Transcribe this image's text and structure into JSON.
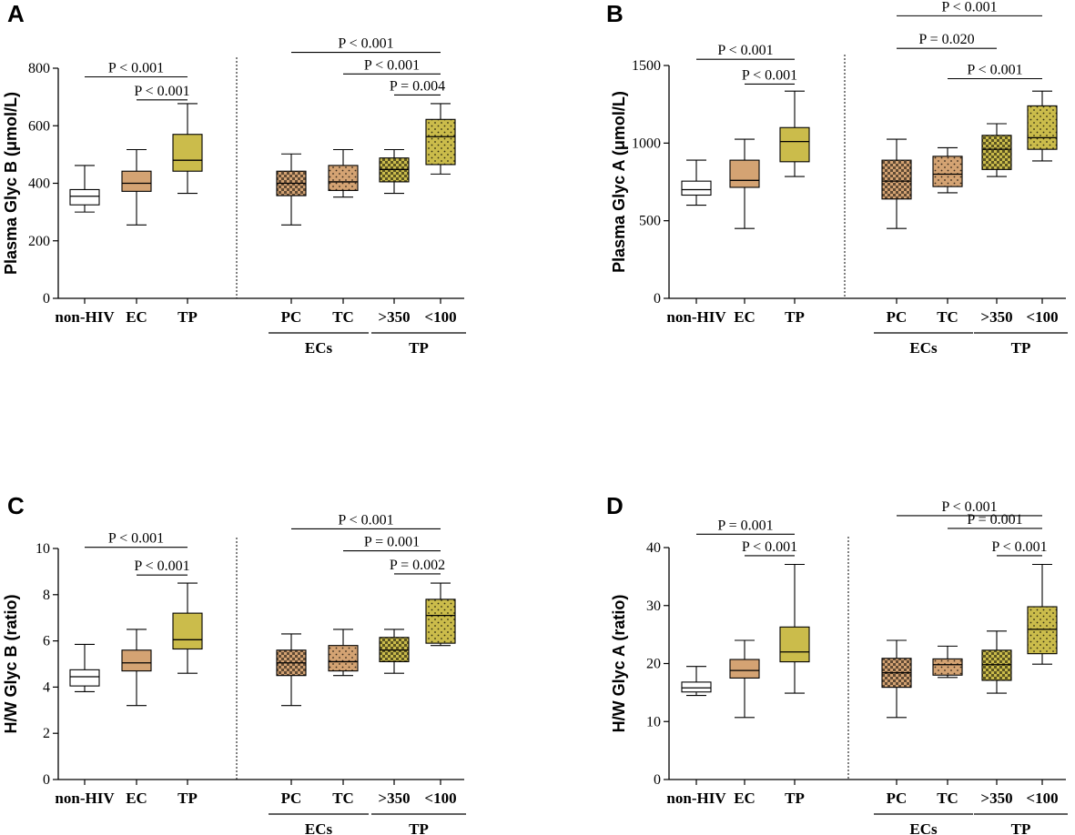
{
  "colors": {
    "white": "#ffffff",
    "tan": "#d4a373",
    "olive": "#cbbc4b",
    "line": "#000000"
  },
  "chart_data": [
    {
      "type": "box",
      "panel": "A",
      "ylabel": "Plasma Glyc B (μmol/L)",
      "ylim": [
        0,
        800
      ],
      "yticks": [
        0,
        200,
        400,
        600,
        800
      ],
      "categories": [
        "non-HIV",
        "EC",
        "TP",
        "PC",
        "TC",
        ">350",
        "<100"
      ],
      "groups": [
        {
          "label": "ECs",
          "from": 3,
          "to": 4
        },
        {
          "label": "TP",
          "from": 5,
          "to": 6
        }
      ],
      "boxes": [
        {
          "min": 300,
          "q1": 325,
          "median": 355,
          "q3": 378,
          "max": 462,
          "fill": "white",
          "pattern": "none"
        },
        {
          "min": 255,
          "q1": 372,
          "median": 400,
          "q3": 442,
          "max": 517,
          "fill": "tan",
          "pattern": "none"
        },
        {
          "min": 365,
          "q1": 442,
          "median": 480,
          "q3": 570,
          "max": 677,
          "fill": "olive",
          "pattern": "none"
        },
        {
          "min": 255,
          "q1": 357,
          "median": 400,
          "q3": 442,
          "max": 502,
          "fill": "tan",
          "pattern": "check"
        },
        {
          "min": 352,
          "q1": 375,
          "median": 405,
          "q3": 462,
          "max": 517,
          "fill": "tan",
          "pattern": "dots"
        },
        {
          "min": 365,
          "q1": 405,
          "median": 448,
          "q3": 488,
          "max": 517,
          "fill": "olive",
          "pattern": "check"
        },
        {
          "min": 432,
          "q1": 465,
          "median": 562,
          "q3": 622,
          "max": 677,
          "fill": "olive",
          "pattern": "dots"
        }
      ],
      "annotations": [
        {
          "text": "P < 0.001",
          "from": 0,
          "to": 2,
          "y": 770
        },
        {
          "text": "P < 0.001",
          "from": 1,
          "to": 2,
          "y": 690
        },
        {
          "text": "P < 0.001",
          "from": 3,
          "to": 6,
          "y": 855
        },
        {
          "text": "P < 0.001",
          "from": 4,
          "to": 6,
          "y": 780
        },
        {
          "text": "P = 0.004",
          "from": 5,
          "to": 6,
          "y": 707
        }
      ]
    },
    {
      "type": "box",
      "panel": "B",
      "ylabel": "Plasma Glyc A (μmol/L)",
      "ylim": [
        0,
        1500
      ],
      "yticks": [
        0,
        500,
        1000,
        1500
      ],
      "categories": [
        "non-HIV",
        "EC",
        "TP",
        "PC",
        "TC",
        ">350",
        "<100"
      ],
      "groups": [
        {
          "label": "ECs",
          "from": 3,
          "to": 4
        },
        {
          "label": "TP",
          "from": 5,
          "to": 6
        }
      ],
      "boxes": [
        {
          "min": 600,
          "q1": 665,
          "median": 700,
          "q3": 755,
          "max": 890,
          "fill": "white",
          "pattern": "none"
        },
        {
          "min": 450,
          "q1": 715,
          "median": 760,
          "q3": 890,
          "max": 1025,
          "fill": "tan",
          "pattern": "none"
        },
        {
          "min": 785,
          "q1": 880,
          "median": 1010,
          "q3": 1100,
          "max": 1335,
          "fill": "olive",
          "pattern": "none"
        },
        {
          "min": 450,
          "q1": 640,
          "median": 755,
          "q3": 890,
          "max": 1025,
          "fill": "tan",
          "pattern": "check"
        },
        {
          "min": 680,
          "q1": 720,
          "median": 800,
          "q3": 915,
          "max": 970,
          "fill": "tan",
          "pattern": "dots"
        },
        {
          "min": 785,
          "q1": 830,
          "median": 960,
          "q3": 1050,
          "max": 1125,
          "fill": "olive",
          "pattern": "check"
        },
        {
          "min": 885,
          "q1": 960,
          "median": 1035,
          "q3": 1240,
          "max": 1335,
          "fill": "olive",
          "pattern": "dots"
        }
      ],
      "annotations": [
        {
          "text": "P < 0.001",
          "from": 0,
          "to": 2,
          "y": 1540
        },
        {
          "text": "P < 0.001",
          "from": 1,
          "to": 2,
          "y": 1380
        },
        {
          "text": "P < 0.001",
          "from": 3,
          "to": 6,
          "y": 1820
        },
        {
          "text": "P = 0.020",
          "from": 3,
          "to": 5,
          "y": 1610
        },
        {
          "text": "P < 0.001",
          "from": 4,
          "to": 6,
          "y": 1415
        }
      ]
    },
    {
      "type": "box",
      "panel": "C",
      "ylabel": "H/W Glyc B (ratio)",
      "ylim": [
        0,
        10
      ],
      "yticks": [
        0,
        2,
        4,
        6,
        8,
        10
      ],
      "categories": [
        "non-HIV",
        "EC",
        "TP",
        "PC",
        "TC",
        ">350",
        "<100"
      ],
      "groups": [
        {
          "label": "ECs",
          "from": 3,
          "to": 4
        },
        {
          "label": "TP",
          "from": 5,
          "to": 6
        }
      ],
      "boxes": [
        {
          "min": 3.8,
          "q1": 4.05,
          "median": 4.45,
          "q3": 4.75,
          "max": 5.85,
          "fill": "white",
          "pattern": "none"
        },
        {
          "min": 3.2,
          "q1": 4.7,
          "median": 5.05,
          "q3": 5.6,
          "max": 6.5,
          "fill": "tan",
          "pattern": "none"
        },
        {
          "min": 4.6,
          "q1": 5.65,
          "median": 6.05,
          "q3": 7.2,
          "max": 8.5,
          "fill": "olive",
          "pattern": "none"
        },
        {
          "min": 3.2,
          "q1": 4.5,
          "median": 5.05,
          "q3": 5.6,
          "max": 6.3,
          "fill": "tan",
          "pattern": "check"
        },
        {
          "min": 4.5,
          "q1": 4.7,
          "median": 5.1,
          "q3": 5.8,
          "max": 6.5,
          "fill": "tan",
          "pattern": "dots"
        },
        {
          "min": 4.6,
          "q1": 5.1,
          "median": 5.6,
          "q3": 6.15,
          "max": 6.5,
          "fill": "olive",
          "pattern": "check"
        },
        {
          "min": 5.8,
          "q1": 5.9,
          "median": 7.1,
          "q3": 7.8,
          "max": 8.5,
          "fill": "olive",
          "pattern": "dots"
        }
      ],
      "annotations": [
        {
          "text": "P < 0.001",
          "from": 0,
          "to": 2,
          "y": 10.05
        },
        {
          "text": "P < 0.001",
          "from": 1,
          "to": 2,
          "y": 8.85
        },
        {
          "text": "P < 0.001",
          "from": 3,
          "to": 6,
          "y": 10.85
        },
        {
          "text": "P = 0.001",
          "from": 4,
          "to": 6,
          "y": 9.9
        },
        {
          "text": "P = 0.002",
          "from": 5,
          "to": 6,
          "y": 8.9
        }
      ]
    },
    {
      "type": "box",
      "panel": "D",
      "ylabel": "H/W Glyc A (ratio)",
      "ylim": [
        0,
        40
      ],
      "yticks": [
        0,
        10,
        20,
        30,
        40
      ],
      "categories": [
        "non-HIV",
        "EC",
        "TP",
        "PC",
        "TC",
        ">350",
        "<100"
      ],
      "groups": [
        {
          "label": "ECs",
          "from": 3,
          "to": 4
        },
        {
          "label": "TP",
          "from": 5,
          "to": 6
        }
      ],
      "boxes": [
        {
          "min": 14.5,
          "q1": 15.1,
          "median": 15.8,
          "q3": 16.8,
          "max": 19.5,
          "fill": "white",
          "pattern": "none"
        },
        {
          "min": 10.7,
          "q1": 17.5,
          "median": 18.8,
          "q3": 20.7,
          "max": 24,
          "fill": "tan",
          "pattern": "none"
        },
        {
          "min": 14.9,
          "q1": 20.3,
          "median": 22,
          "q3": 26.3,
          "max": 37.1,
          "fill": "olive",
          "pattern": "none"
        },
        {
          "min": 10.7,
          "q1": 15.9,
          "median": 18.4,
          "q3": 20.9,
          "max": 24,
          "fill": "tan",
          "pattern": "check"
        },
        {
          "min": 17.6,
          "q1": 18,
          "median": 19.8,
          "q3": 20.8,
          "max": 23,
          "fill": "tan",
          "pattern": "dots"
        },
        {
          "min": 14.9,
          "q1": 17.1,
          "median": 19.8,
          "q3": 22.3,
          "max": 25.6,
          "fill": "olive",
          "pattern": "check"
        },
        {
          "min": 19.9,
          "q1": 21.7,
          "median": 25.9,
          "q3": 29.8,
          "max": 37.1,
          "fill": "olive",
          "pattern": "dots"
        }
      ],
      "annotations": [
        {
          "text": "P = 0.001",
          "from": 0,
          "to": 2,
          "y": 42.3
        },
        {
          "text": "P < 0.001",
          "from": 1,
          "to": 2,
          "y": 38.6
        },
        {
          "text": "P < 0.001",
          "from": 3,
          "to": 6,
          "y": 45.5
        },
        {
          "text": "P = 0.001",
          "from": 4,
          "to": 6,
          "y": 43.3
        },
        {
          "text": "P < 0.001",
          "from": 5,
          "to": 6,
          "y": 38.6
        }
      ]
    }
  ]
}
